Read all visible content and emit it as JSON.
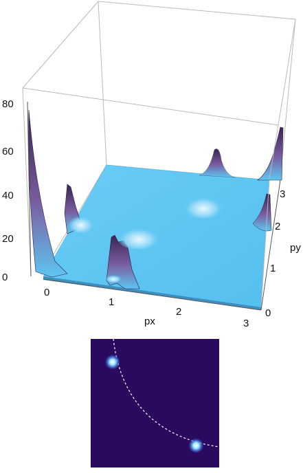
{
  "chart_data": [
    {
      "type": "surface",
      "x_label": "px",
      "y_label": "py",
      "x_ticks": [
        "0",
        "1",
        "2",
        "3"
      ],
      "y_ticks": [
        "0",
        "1",
        "2",
        "3"
      ],
      "z_ticks": [
        "0",
        "20",
        "40",
        "60",
        "80"
      ],
      "x_range": [
        0,
        3.14
      ],
      "y_range": [
        0,
        3.14
      ],
      "z_range": [
        0,
        80
      ],
      "base_level": 0,
      "surface_color": "#5ec6f2",
      "peak_color": "#5b3a78",
      "peaks": [
        {
          "px": 0.0,
          "py": 3.0,
          "height": 85
        },
        {
          "px": 0.0,
          "py": 1.0,
          "height": 25
        },
        {
          "px": 1.0,
          "py": 0.0,
          "height": 26
        },
        {
          "px": 3.05,
          "py": 2.6,
          "height": 40
        },
        {
          "px": 3.1,
          "py": 3.1,
          "height": 45
        },
        {
          "px": 2.1,
          "py": 3.0,
          "height": 18
        },
        {
          "px": 2.2,
          "py": 2.2,
          "height": 12
        },
        {
          "px": 1.4,
          "py": 1.6,
          "height": 7
        },
        {
          "px": 0.6,
          "py": 0.6,
          "height": 8
        }
      ]
    },
    {
      "type": "heatmap",
      "background": "#2a0a5e",
      "curve_color": "#ffffff",
      "curve_style": "dashed",
      "hotspots": [
        {
          "x": 0.17,
          "y": 0.82
        },
        {
          "x": 0.82,
          "y": 0.17
        }
      ]
    }
  ]
}
